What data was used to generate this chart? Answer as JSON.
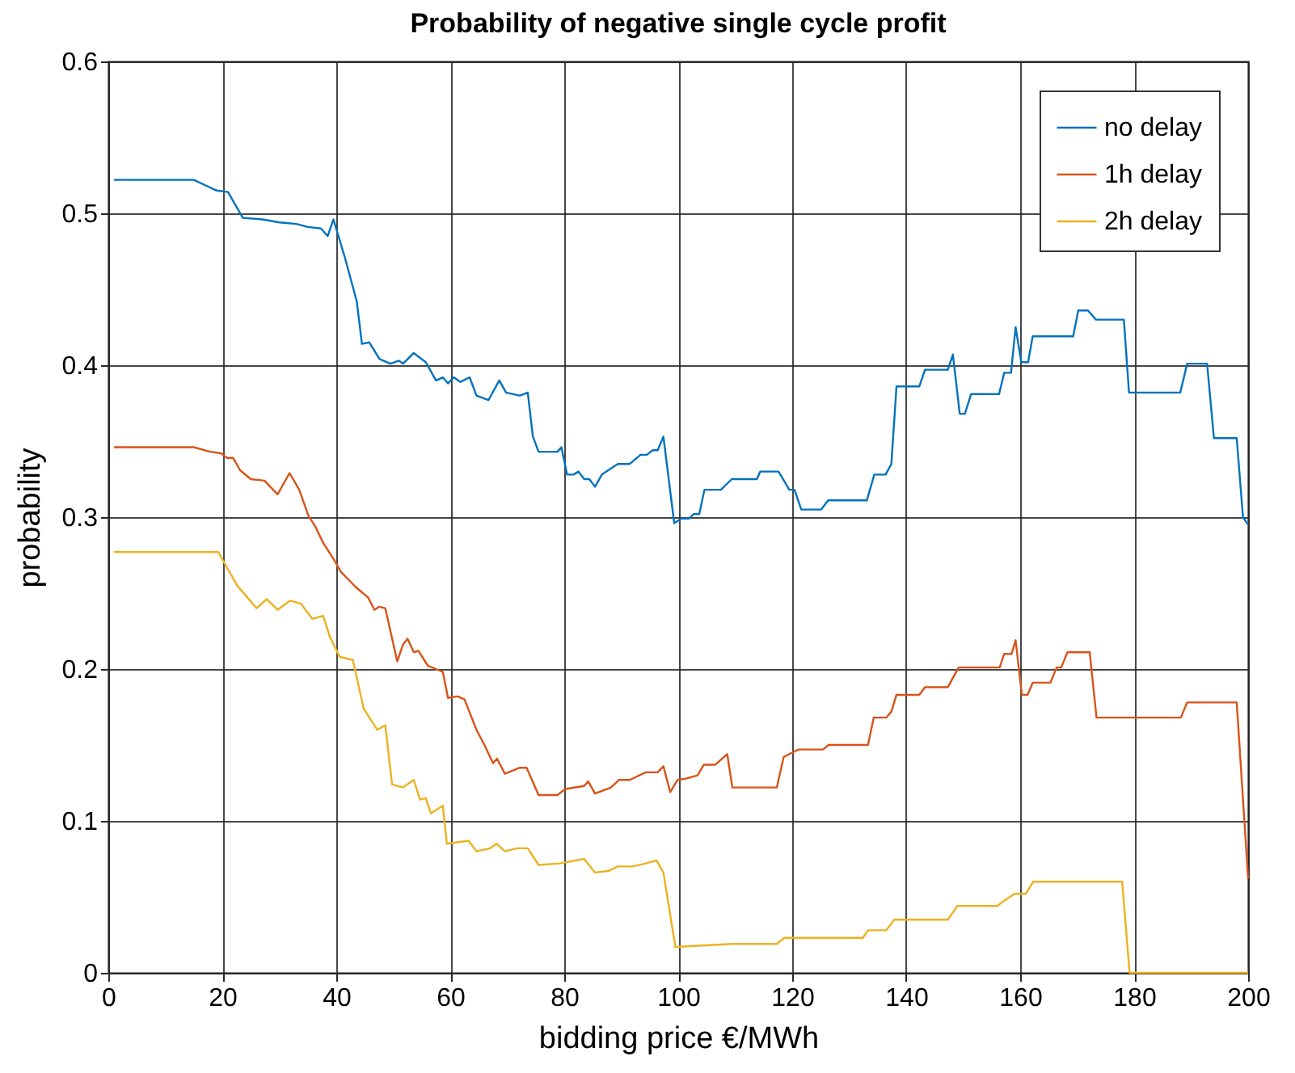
{
  "chart_data": {
    "type": "line",
    "title": "Probability of negative single cycle profit",
    "xlabel": "bidding price €/MWh",
    "ylabel": "probability",
    "xlim": [
      0,
      200
    ],
    "xticks": [
      0,
      20,
      40,
      60,
      80,
      100,
      120,
      140,
      160,
      180,
      200
    ],
    "ylim": [
      0,
      0.6
    ],
    "yticks": [
      0,
      0.1,
      0.2,
      0.3,
      0.4,
      0.5,
      0.6
    ],
    "grid": true,
    "legend": "top right",
    "marker": "none",
    "line_style": "solid",
    "series": [
      {
        "name": "no delay",
        "color": "#0072bd",
        "x": [
          1,
          15,
          19,
          21,
          23.6,
          27,
          30,
          33,
          35,
          37.3,
          38.5,
          39.5,
          41.5,
          43.6,
          44.5,
          45.8,
          47.6,
          49.5,
          51,
          51.7,
          53.6,
          55.7,
          57.5,
          58.7,
          59.6,
          60.6,
          61.8,
          63.4,
          64.6,
          66.7,
          68.6,
          69.8,
          72.2,
          73.6,
          74.5,
          75.5,
          78.8,
          79.5,
          80.5,
          81.6,
          82.5,
          83.5,
          84.4,
          85.4,
          86.6,
          89.4,
          91.5,
          93.4,
          94.5,
          95.5,
          96.4,
          97.4,
          99.3,
          100.5,
          101.9,
          102.7,
          103.7,
          104.6,
          107.5,
          109.4,
          113.8,
          114.4,
          117.6,
          119.5,
          120.4,
          121.6,
          125.1,
          126.3,
          133.1,
          134.4,
          136.4,
          137.4,
          138.3,
          142.3,
          143.3,
          147.3,
          148.2,
          149.4,
          150.3,
          151.4,
          156.3,
          157.2,
          158.4,
          159.2,
          160.2,
          161.4,
          162.2,
          169.3,
          170.2,
          171.9,
          173.3,
          178.2,
          179.1,
          188.1,
          189.3,
          192.8,
          194,
          198,
          199.1,
          200
        ],
        "values": [
          0.522,
          0.522,
          0.515,
          0.514,
          0.497,
          0.496,
          0.494,
          0.493,
          0.491,
          0.49,
          0.485,
          0.496,
          0.471,
          0.442,
          0.414,
          0.415,
          0.404,
          0.401,
          0.403,
          0.401,
          0.408,
          0.402,
          0.39,
          0.392,
          0.388,
          0.392,
          0.389,
          0.392,
          0.38,
          0.377,
          0.39,
          0.382,
          0.38,
          0.382,
          0.353,
          0.343,
          0.343,
          0.346,
          0.328,
          0.328,
          0.33,
          0.325,
          0.325,
          0.32,
          0.328,
          0.335,
          0.335,
          0.341,
          0.341,
          0.344,
          0.344,
          0.353,
          0.296,
          0.299,
          0.299,
          0.302,
          0.302,
          0.318,
          0.318,
          0.325,
          0.325,
          0.33,
          0.33,
          0.318,
          0.318,
          0.305,
          0.305,
          0.311,
          0.311,
          0.328,
          0.328,
          0.335,
          0.386,
          0.386,
          0.397,
          0.397,
          0.407,
          0.368,
          0.368,
          0.381,
          0.381,
          0.395,
          0.395,
          0.425,
          0.402,
          0.402,
          0.419,
          0.419,
          0.436,
          0.436,
          0.43,
          0.43,
          0.382,
          0.382,
          0.401,
          0.401,
          0.352,
          0.352,
          0.3,
          0.295
        ]
      },
      {
        "name": "1h delay",
        "color": "#d95319",
        "x": [
          1,
          15,
          17.9,
          19.8,
          20.8,
          21.9,
          23.1,
          25,
          27.4,
          29.7,
          31.8,
          33.5,
          35.1,
          36.3,
          37.7,
          39.6,
          40.8,
          43.4,
          45.6,
          46.7,
          47.5,
          48.6,
          50.7,
          51.7,
          52.5,
          53.6,
          54.4,
          56.1,
          57.5,
          58.7,
          59.6,
          61.3,
          62.5,
          64.6,
          66,
          67.5,
          68.2,
          69.6,
          72.2,
          73.4,
          75.5,
          78.8,
          80.2,
          83.5,
          84.2,
          85.4,
          88.2,
          89.6,
          91.5,
          94.3,
          96.4,
          97.4,
          98.6,
          99.9,
          101.5,
          103.4,
          104.5,
          106.5,
          108.6,
          109.5,
          117.3,
          118.5,
          119.5,
          121.1,
          125.4,
          126.4,
          133.3,
          134.3,
          136.5,
          137.4,
          138.3,
          142.3,
          143.3,
          147.3,
          149.2,
          156.4,
          157.2,
          158.5,
          159.2,
          160.3,
          161.3,
          162.2,
          165.3,
          166.4,
          167.2,
          168.3,
          172.2,
          173.4,
          188.2,
          189.3,
          198,
          200
        ],
        "values": [
          0.346,
          0.346,
          0.343,
          0.342,
          0.339,
          0.339,
          0.331,
          0.325,
          0.324,
          0.315,
          0.329,
          0.318,
          0.301,
          0.294,
          0.283,
          0.272,
          0.264,
          0.254,
          0.247,
          0.239,
          0.241,
          0.24,
          0.205,
          0.216,
          0.22,
          0.211,
          0.212,
          0.202,
          0.2,
          0.198,
          0.181,
          0.182,
          0.18,
          0.16,
          0.15,
          0.138,
          0.141,
          0.131,
          0.135,
          0.135,
          0.117,
          0.117,
          0.121,
          0.123,
          0.126,
          0.118,
          0.122,
          0.127,
          0.127,
          0.132,
          0.132,
          0.136,
          0.119,
          0.127,
          0.128,
          0.13,
          0.137,
          0.137,
          0.144,
          0.122,
          0.122,
          0.142,
          0.144,
          0.147,
          0.147,
          0.15,
          0.15,
          0.168,
          0.168,
          0.172,
          0.183,
          0.183,
          0.188,
          0.188,
          0.201,
          0.201,
          0.21,
          0.21,
          0.219,
          0.183,
          0.183,
          0.191,
          0.191,
          0.201,
          0.201,
          0.211,
          0.211,
          0.168,
          0.168,
          0.178,
          0.178,
          0.062
        ]
      },
      {
        "name": "2h delay",
        "color": "#edb120",
        "x": [
          1,
          19.3,
          22.6,
          26,
          27.8,
          29.7,
          31.9,
          33.8,
          35.8,
          37.7,
          38.9,
          40.6,
          42.9,
          44.8,
          47.2,
          48.6,
          49.8,
          51.7,
          53.6,
          54.7,
          55.7,
          56.6,
          58.7,
          59.4,
          63.2,
          64.6,
          67,
          68.1,
          69.6,
          71.7,
          73.6,
          75.5,
          79.2,
          83.5,
          85.4,
          87.7,
          89.4,
          92,
          94.3,
          96.2,
          97.4,
          99.5,
          109.5,
          117.3,
          118.6,
          132.4,
          133.3,
          136.5,
          137.9,
          147.3,
          149,
          156,
          157,
          159,
          161,
          162.3,
          177.9,
          179.2,
          200
        ],
        "values": [
          0.277,
          0.277,
          0.255,
          0.24,
          0.246,
          0.239,
          0.245,
          0.243,
          0.233,
          0.235,
          0.221,
          0.208,
          0.206,
          0.174,
          0.16,
          0.163,
          0.124,
          0.122,
          0.127,
          0.114,
          0.115,
          0.105,
          0.11,
          0.085,
          0.087,
          0.08,
          0.082,
          0.085,
          0.08,
          0.082,
          0.082,
          0.071,
          0.072,
          0.075,
          0.066,
          0.067,
          0.07,
          0.07,
          0.072,
          0.074,
          0.066,
          0.017,
          0.019,
          0.019,
          0.023,
          0.023,
          0.028,
          0.028,
          0.035,
          0.035,
          0.044,
          0.044,
          0.047,
          0.052,
          0.052,
          0.06,
          0.06,
          0,
          0
        ]
      }
    ]
  }
}
